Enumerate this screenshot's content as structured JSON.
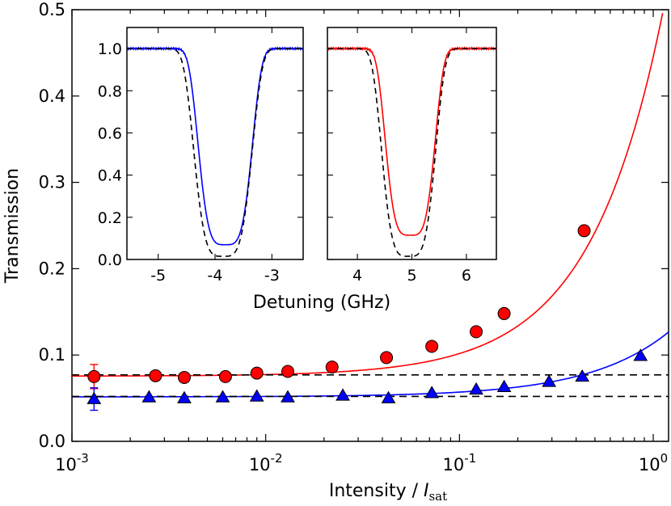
{
  "chart_data": [
    {
      "type": "scatter",
      "title": "",
      "xlabel": "Intensity / ",
      "xlabel_math": "I",
      "xlabel_sub": "sat",
      "ylabel": "Transmission",
      "xscale": "log",
      "xlim": [
        0.001,
        1.2
      ],
      "ylim": [
        0,
        0.5
      ],
      "x_ticks": [
        {
          "base": "10",
          "exp": "-3",
          "value": 0.001
        },
        {
          "base": "10",
          "exp": "-2",
          "value": 0.01
        },
        {
          "base": "10",
          "exp": "-1",
          "value": 0.1
        },
        {
          "base": "10",
          "exp": "0",
          "value": 1
        }
      ],
      "y_ticks": [
        "0.0",
        "0.1",
        "0.2",
        "0.3",
        "0.4",
        "0.5"
      ],
      "series": [
        {
          "name": "red-circles",
          "color": "#ff0000",
          "marker": "circle",
          "x": [
            0.0013,
            0.0027,
            0.0038,
            0.0062,
            0.009,
            0.013,
            0.022,
            0.042,
            0.072,
            0.122,
            0.17,
            0.44
          ],
          "y": [
            0.075,
            0.076,
            0.074,
            0.075,
            0.079,
            0.081,
            0.086,
            0.097,
            0.11,
            0.127,
            0.148,
            0.244
          ],
          "err_index": 0,
          "err": 0.014,
          "fit": {
            "base": 0.0755,
            "k": 0.37,
            "p": 1.15
          },
          "asymptote": 0.077
        },
        {
          "name": "blue-triangles",
          "color": "#0000ff",
          "marker": "triangle",
          "x": [
            0.0013,
            0.0025,
            0.0038,
            0.006,
            0.009,
            0.013,
            0.025,
            0.043,
            0.072,
            0.122,
            0.17,
            0.29,
            0.43,
            0.86
          ],
          "y": [
            0.049,
            0.051,
            0.05,
            0.051,
            0.052,
            0.051,
            0.053,
            0.05,
            0.056,
            0.06,
            0.063,
            0.069,
            0.075,
            0.099
          ],
          "err_index": 0,
          "err": 0.013,
          "fit": {
            "base": 0.0515,
            "k": 0.062,
            "p": 1.05
          },
          "asymptote": 0.052
        }
      ]
    },
    {
      "type": "line",
      "title": "",
      "xlabel": "",
      "ylabel": "",
      "xlim": [
        -5.55,
        -2.45
      ],
      "ylim": [
        0,
        1.1
      ],
      "x_ticks": [
        "-5",
        "-4",
        "-3"
      ],
      "y_ticks": [
        "0.0",
        "0.2",
        "0.4",
        "0.6",
        "0.8",
        "1.0"
      ],
      "series": [
        {
          "name": "blue-measured",
          "color": "#0000ff",
          "style": "solid",
          "center": -3.82,
          "depth": 0.93,
          "width": 0.52
        },
        {
          "name": "dashed-model",
          "color": "#000000",
          "style": "dashed",
          "center": -3.86,
          "depth": 0.985,
          "width": 0.56
        }
      ]
    },
    {
      "type": "line",
      "title": "",
      "xlabel": "",
      "ylabel": "",
      "xlim": [
        3.45,
        6.55
      ],
      "ylim": [
        0,
        1.1
      ],
      "x_ticks": [
        "4",
        "5",
        "6"
      ],
      "y_ticks": [],
      "series": [
        {
          "name": "red-measured",
          "color": "#ff0000",
          "style": "solid",
          "center": 4.97,
          "depth": 0.885,
          "width": 0.5
        },
        {
          "name": "dashed-model",
          "color": "#000000",
          "style": "dashed",
          "center": 4.94,
          "depth": 0.985,
          "width": 0.54
        }
      ]
    }
  ],
  "shared_xlabel": "Detuning (GHz)"
}
